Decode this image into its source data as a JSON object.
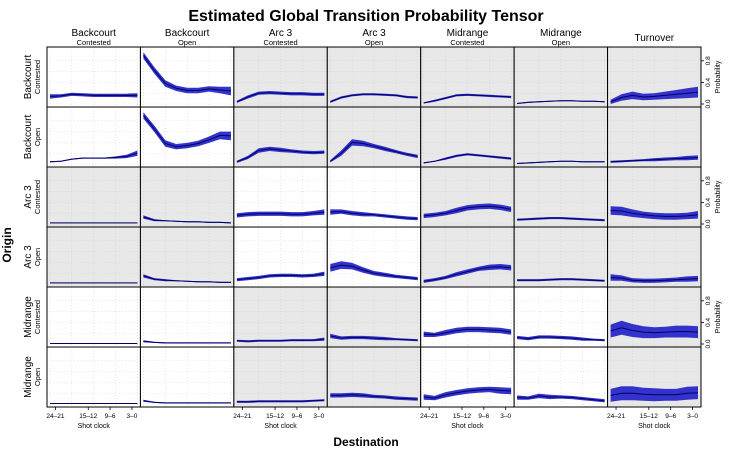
{
  "chart_data": {
    "type": "area",
    "title": "Estimated Global Transition Probability Tensor",
    "xlabel": "Destination",
    "ylabel": "Origin",
    "right_axis_label": "Probability",
    "x_axis_label": "Shot clock",
    "x_ticks": [
      "24–21",
      "15–12",
      "9–6",
      "3–0"
    ],
    "y_ticks": [
      "0.0",
      "0.4",
      "0.8"
    ],
    "ylim": [
      0,
      1.0
    ],
    "grid": true,
    "colors": {
      "band": "#3333cc",
      "line": "#000066",
      "shaded_panel": "#e8e8e8",
      "panel": "#ffffff"
    },
    "columns": [
      {
        "main": "Backcourt",
        "sub": "Contested"
      },
      {
        "main": "Backcourt",
        "sub": "Open"
      },
      {
        "main": "Arc 3",
        "sub": "Contested"
      },
      {
        "main": "Arc 3",
        "sub": "Open"
      },
      {
        "main": "Midrange",
        "sub": "Contested"
      },
      {
        "main": "Midrange",
        "sub": "Open"
      },
      {
        "main": "Turnover",
        "sub": ""
      }
    ],
    "rows": [
      {
        "main": "Backcourt",
        "sub": "Contested"
      },
      {
        "main": "Backcourt",
        "sub": "Open"
      },
      {
        "main": "Arc 3",
        "sub": "Contested"
      },
      {
        "main": "Arc 3",
        "sub": "Open"
      },
      {
        "main": "Midrange",
        "sub": "Contested"
      },
      {
        "main": "Midrange",
        "sub": "Open"
      }
    ],
    "shaded": [
      [
        false,
        false,
        true,
        true,
        true,
        true,
        true
      ],
      [
        false,
        false,
        true,
        true,
        true,
        true,
        true
      ],
      [
        true,
        true,
        false,
        false,
        true,
        true,
        true
      ],
      [
        true,
        true,
        false,
        false,
        true,
        true,
        true
      ],
      [
        false,
        false,
        true,
        true,
        false,
        false,
        true
      ],
      [
        false,
        false,
        true,
        true,
        false,
        false,
        true
      ]
    ],
    "x": [
      24,
      21,
      18,
      15,
      12,
      9,
      6,
      3,
      0
    ],
    "panels": [
      [
        {
          "mean": [
            0.14,
            0.15,
            0.18,
            0.17,
            0.16,
            0.16,
            0.16,
            0.16,
            0.16
          ],
          "half": [
            0.04,
            0.03,
            0.03,
            0.03,
            0.03,
            0.03,
            0.03,
            0.03,
            0.04
          ]
        },
        {
          "mean": [
            0.9,
            0.62,
            0.38,
            0.29,
            0.25,
            0.25,
            0.28,
            0.26,
            0.24
          ],
          "half": [
            0.06,
            0.06,
            0.06,
            0.05,
            0.05,
            0.05,
            0.05,
            0.06,
            0.08
          ]
        },
        {
          "mean": [
            0.04,
            0.13,
            0.2,
            0.21,
            0.2,
            0.19,
            0.19,
            0.18,
            0.18
          ],
          "half": [
            0.02,
            0.03,
            0.03,
            0.03,
            0.03,
            0.03,
            0.03,
            0.03,
            0.03
          ]
        },
        {
          "mean": [
            0.04,
            0.12,
            0.16,
            0.18,
            0.18,
            0.17,
            0.16,
            0.13,
            0.12
          ],
          "half": [
            0.02,
            0.02,
            0.02,
            0.02,
            0.02,
            0.02,
            0.02,
            0.02,
            0.02
          ]
        },
        {
          "mean": [
            0.02,
            0.06,
            0.11,
            0.16,
            0.17,
            0.16,
            0.15,
            0.14,
            0.13
          ],
          "half": [
            0.01,
            0.02,
            0.02,
            0.02,
            0.02,
            0.02,
            0.02,
            0.02,
            0.02
          ]
        },
        {
          "mean": [
            0.01,
            0.03,
            0.04,
            0.05,
            0.06,
            0.06,
            0.05,
            0.05,
            0.04
          ],
          "half": [
            0.01,
            0.01,
            0.01,
            0.01,
            0.01,
            0.01,
            0.01,
            0.01,
            0.01
          ]
        },
        {
          "mean": [
            0.04,
            0.12,
            0.16,
            0.13,
            0.14,
            0.16,
            0.18,
            0.2,
            0.22
          ],
          "half": [
            0.04,
            0.06,
            0.07,
            0.06,
            0.06,
            0.07,
            0.08,
            0.09,
            0.1
          ]
        }
      ],
      [
        {
          "mean": [
            0.04,
            0.05,
            0.09,
            0.11,
            0.11,
            0.11,
            0.12,
            0.14,
            0.2
          ],
          "half": [
            0.01,
            0.01,
            0.01,
            0.01,
            0.01,
            0.01,
            0.02,
            0.03,
            0.05
          ]
        },
        {
          "mean": [
            0.9,
            0.65,
            0.38,
            0.32,
            0.34,
            0.38,
            0.45,
            0.53,
            0.52
          ],
          "half": [
            0.06,
            0.06,
            0.06,
            0.05,
            0.05,
            0.05,
            0.06,
            0.07,
            0.08
          ]
        },
        {
          "mean": [
            0.04,
            0.12,
            0.25,
            0.28,
            0.26,
            0.24,
            0.22,
            0.21,
            0.22
          ],
          "half": [
            0.02,
            0.03,
            0.04,
            0.04,
            0.04,
            0.03,
            0.03,
            0.03,
            0.03
          ]
        },
        {
          "mean": [
            0.05,
            0.2,
            0.4,
            0.38,
            0.33,
            0.28,
            0.23,
            0.18,
            0.14
          ],
          "half": [
            0.02,
            0.05,
            0.06,
            0.05,
            0.04,
            0.04,
            0.03,
            0.03,
            0.03
          ]
        },
        {
          "mean": [
            0.02,
            0.05,
            0.1,
            0.15,
            0.18,
            0.16,
            0.14,
            0.12,
            0.1
          ],
          "half": [
            0.01,
            0.01,
            0.02,
            0.02,
            0.02,
            0.02,
            0.02,
            0.02,
            0.02
          ]
        },
        {
          "mean": [
            0.01,
            0.02,
            0.03,
            0.04,
            0.05,
            0.05,
            0.04,
            0.04,
            0.04
          ],
          "half": [
            0.01,
            0.01,
            0.01,
            0.01,
            0.01,
            0.01,
            0.01,
            0.01,
            0.01
          ]
        },
        {
          "mean": [
            0.04,
            0.05,
            0.06,
            0.07,
            0.08,
            0.09,
            0.1,
            0.11,
            0.12
          ],
          "half": [
            0.02,
            0.02,
            0.02,
            0.02,
            0.03,
            0.03,
            0.03,
            0.04,
            0.04
          ]
        }
      ],
      [
        {
          "mean": [
            0.02,
            0.02,
            0.02,
            0.02,
            0.02,
            0.02,
            0.02,
            0.02,
            0.02
          ],
          "half": [
            0.005,
            0.005,
            0.005,
            0.005,
            0.005,
            0.005,
            0.005,
            0.005,
            0.005
          ]
        },
        {
          "mean": [
            0.13,
            0.07,
            0.06,
            0.05,
            0.04,
            0.04,
            0.03,
            0.03,
            0.02
          ],
          "half": [
            0.03,
            0.02,
            0.01,
            0.01,
            0.01,
            0.01,
            0.01,
            0.01,
            0.01
          ]
        },
        {
          "mean": [
            0.16,
            0.18,
            0.19,
            0.19,
            0.19,
            0.18,
            0.18,
            0.2,
            0.22
          ],
          "half": [
            0.04,
            0.04,
            0.04,
            0.04,
            0.04,
            0.04,
            0.04,
            0.04,
            0.05
          ]
        },
        {
          "mean": [
            0.22,
            0.23,
            0.2,
            0.18,
            0.17,
            0.15,
            0.13,
            0.11,
            0.1
          ],
          "half": [
            0.05,
            0.04,
            0.04,
            0.04,
            0.03,
            0.03,
            0.03,
            0.03,
            0.03
          ]
        },
        {
          "mean": [
            0.15,
            0.17,
            0.2,
            0.25,
            0.3,
            0.32,
            0.33,
            0.31,
            0.27
          ],
          "half": [
            0.04,
            0.04,
            0.04,
            0.05,
            0.05,
            0.05,
            0.05,
            0.05,
            0.05
          ]
        },
        {
          "mean": [
            0.08,
            0.09,
            0.1,
            0.11,
            0.11,
            0.1,
            0.09,
            0.08,
            0.07
          ],
          "half": [
            0.02,
            0.02,
            0.02,
            0.02,
            0.02,
            0.02,
            0.02,
            0.02,
            0.02
          ]
        },
        {
          "mean": [
            0.25,
            0.24,
            0.2,
            0.17,
            0.15,
            0.14,
            0.14,
            0.15,
            0.17
          ],
          "half": [
            0.08,
            0.08,
            0.07,
            0.06,
            0.06,
            0.06,
            0.06,
            0.06,
            0.07
          ]
        }
      ],
      [
        {
          "mean": [
            0.02,
            0.02,
            0.02,
            0.02,
            0.02,
            0.02,
            0.02,
            0.02,
            0.02
          ],
          "half": [
            0.005,
            0.005,
            0.005,
            0.005,
            0.005,
            0.005,
            0.005,
            0.005,
            0.005
          ]
        },
        {
          "mean": [
            0.15,
            0.09,
            0.07,
            0.06,
            0.05,
            0.04,
            0.04,
            0.03,
            0.03
          ],
          "half": [
            0.03,
            0.02,
            0.02,
            0.01,
            0.01,
            0.01,
            0.01,
            0.01,
            0.01
          ]
        },
        {
          "mean": [
            0.08,
            0.1,
            0.12,
            0.15,
            0.16,
            0.16,
            0.15,
            0.16,
            0.19
          ],
          "half": [
            0.03,
            0.03,
            0.03,
            0.03,
            0.03,
            0.03,
            0.03,
            0.03,
            0.04
          ]
        },
        {
          "mean": [
            0.3,
            0.35,
            0.33,
            0.26,
            0.2,
            0.17,
            0.14,
            0.12,
            0.1
          ],
          "half": [
            0.07,
            0.07,
            0.06,
            0.05,
            0.04,
            0.04,
            0.03,
            0.03,
            0.03
          ]
        },
        {
          "mean": [
            0.05,
            0.08,
            0.12,
            0.18,
            0.23,
            0.28,
            0.31,
            0.32,
            0.3
          ],
          "half": [
            0.03,
            0.03,
            0.03,
            0.04,
            0.04,
            0.04,
            0.05,
            0.05,
            0.05
          ]
        },
        {
          "mean": [
            0.07,
            0.07,
            0.07,
            0.08,
            0.09,
            0.09,
            0.08,
            0.07,
            0.06
          ],
          "half": [
            0.02,
            0.02,
            0.02,
            0.02,
            0.02,
            0.02,
            0.02,
            0.02,
            0.02
          ]
        },
        {
          "mean": [
            0.12,
            0.11,
            0.07,
            0.06,
            0.06,
            0.07,
            0.08,
            0.09,
            0.1
          ],
          "half": [
            0.06,
            0.05,
            0.04,
            0.04,
            0.04,
            0.04,
            0.04,
            0.05,
            0.05
          ]
        }
      ],
      [
        {
          "mean": [
            0.01,
            0.01,
            0.01,
            0.01,
            0.01,
            0.01,
            0.01,
            0.01,
            0.01
          ],
          "half": [
            0.005,
            0.005,
            0.005,
            0.005,
            0.005,
            0.005,
            0.005,
            0.005,
            0.005
          ]
        },
        {
          "mean": [
            0.05,
            0.03,
            0.02,
            0.02,
            0.02,
            0.02,
            0.02,
            0.02,
            0.02
          ],
          "half": [
            0.02,
            0.01,
            0.01,
            0.01,
            0.01,
            0.01,
            0.01,
            0.01,
            0.01
          ]
        },
        {
          "mean": [
            0.06,
            0.05,
            0.06,
            0.06,
            0.06,
            0.07,
            0.07,
            0.07,
            0.09
          ],
          "half": [
            0.02,
            0.02,
            0.02,
            0.02,
            0.02,
            0.02,
            0.02,
            0.02,
            0.03
          ]
        },
        {
          "mean": [
            0.15,
            0.11,
            0.12,
            0.12,
            0.11,
            0.1,
            0.09,
            0.08,
            0.07
          ],
          "half": [
            0.04,
            0.03,
            0.03,
            0.03,
            0.03,
            0.03,
            0.02,
            0.02,
            0.02
          ]
        },
        {
          "mean": [
            0.18,
            0.17,
            0.21,
            0.25,
            0.27,
            0.27,
            0.26,
            0.25,
            0.22
          ],
          "half": [
            0.05,
            0.04,
            0.05,
            0.05,
            0.05,
            0.05,
            0.05,
            0.05,
            0.05
          ]
        },
        {
          "mean": [
            0.12,
            0.1,
            0.13,
            0.13,
            0.12,
            0.11,
            0.09,
            0.08,
            0.07
          ],
          "half": [
            0.03,
            0.03,
            0.03,
            0.03,
            0.03,
            0.03,
            0.03,
            0.02,
            0.02
          ]
        },
        {
          "mean": [
            0.24,
            0.3,
            0.25,
            0.22,
            0.21,
            0.22,
            0.23,
            0.23,
            0.22
          ],
          "half": [
            0.12,
            0.13,
            0.12,
            0.11,
            0.1,
            0.1,
            0.11,
            0.11,
            0.11
          ]
        }
      ],
      [
        {
          "mean": [
            0.01,
            0.01,
            0.01,
            0.01,
            0.01,
            0.01,
            0.01,
            0.01,
            0.01
          ],
          "half": [
            0.005,
            0.005,
            0.005,
            0.005,
            0.005,
            0.005,
            0.005,
            0.005,
            0.005
          ]
        },
        {
          "mean": [
            0.06,
            0.03,
            0.02,
            0.02,
            0.02,
            0.02,
            0.02,
            0.02,
            0.02
          ],
          "half": [
            0.02,
            0.01,
            0.01,
            0.01,
            0.01,
            0.01,
            0.01,
            0.01,
            0.01
          ]
        },
        {
          "mean": [
            0.04,
            0.04,
            0.05,
            0.05,
            0.05,
            0.05,
            0.05,
            0.06,
            0.07
          ],
          "half": [
            0.02,
            0.02,
            0.02,
            0.02,
            0.02,
            0.02,
            0.02,
            0.02,
            0.02
          ]
        },
        {
          "mean": [
            0.16,
            0.16,
            0.17,
            0.16,
            0.14,
            0.13,
            0.11,
            0.1,
            0.09
          ],
          "half": [
            0.04,
            0.04,
            0.04,
            0.04,
            0.03,
            0.03,
            0.03,
            0.03,
            0.03
          ]
        },
        {
          "mean": [
            0.13,
            0.11,
            0.17,
            0.21,
            0.24,
            0.26,
            0.27,
            0.25,
            0.24
          ],
          "half": [
            0.05,
            0.04,
            0.05,
            0.05,
            0.05,
            0.05,
            0.05,
            0.06,
            0.06
          ]
        },
        {
          "mean": [
            0.12,
            0.11,
            0.15,
            0.13,
            0.13,
            0.12,
            0.1,
            0.08,
            0.06
          ],
          "half": [
            0.04,
            0.03,
            0.04,
            0.04,
            0.03,
            0.03,
            0.03,
            0.03,
            0.03
          ]
        },
        {
          "mean": [
            0.16,
            0.2,
            0.2,
            0.18,
            0.17,
            0.17,
            0.17,
            0.2,
            0.21
          ],
          "half": [
            0.12,
            0.13,
            0.13,
            0.12,
            0.12,
            0.11,
            0.11,
            0.12,
            0.12
          ]
        }
      ]
    ]
  }
}
